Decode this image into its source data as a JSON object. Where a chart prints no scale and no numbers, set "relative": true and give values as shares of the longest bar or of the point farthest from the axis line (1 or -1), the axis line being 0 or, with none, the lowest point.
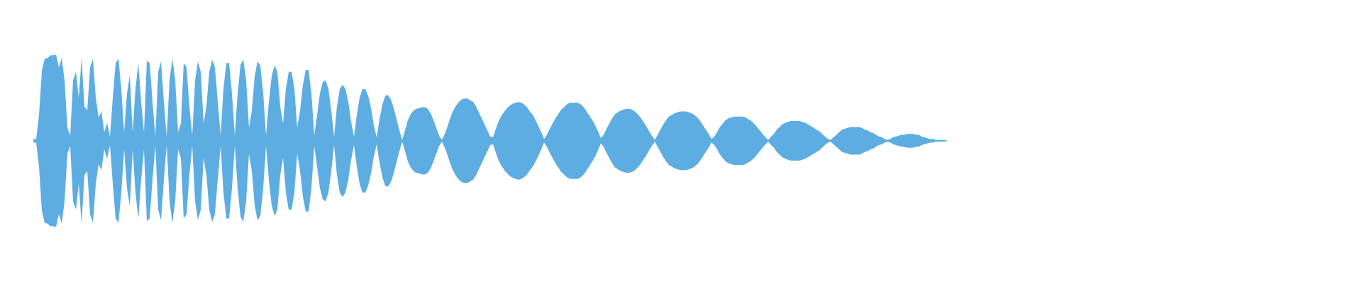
{
  "chart_data": {
    "type": "area",
    "relative": true,
    "tick_labels": false,
    "categories": [
      null,
      null,
      null,
      null,
      null,
      null,
      null,
      null,
      null,
      null,
      null,
      null,
      null,
      null,
      null,
      null,
      null,
      null,
      null,
      null,
      null,
      null,
      null,
      null,
      null,
      null,
      null,
      null,
      null,
      null,
      null,
      null,
      null,
      null,
      null,
      null,
      null,
      null,
      null,
      null,
      null,
      null,
      null,
      null,
      null,
      null,
      null,
      null,
      null,
      null,
      null,
      null,
      null,
      null,
      null,
      null,
      null,
      null,
      null,
      null,
      null,
      null,
      null,
      null,
      null,
      null,
      null,
      null,
      null,
      null,
      null,
      null,
      null,
      null,
      null,
      null,
      null,
      null,
      null,
      null,
      null,
      null,
      null,
      null,
      null,
      null,
      null,
      null,
      null,
      null,
      null,
      null,
      null,
      null,
      null,
      null,
      null,
      null,
      null,
      null,
      null,
      null,
      null,
      null,
      null,
      null,
      null,
      null,
      null,
      null,
      null,
      null,
      null,
      null,
      null,
      null,
      null,
      null,
      null,
      null,
      null,
      null,
      null,
      null,
      null,
      null,
      null,
      null,
      null,
      null,
      null,
      null,
      null,
      null,
      null,
      null,
      null,
      null,
      null,
      null,
      null,
      null,
      null,
      null,
      null,
      null,
      null,
      null,
      null,
      null,
      null,
      null,
      null,
      null,
      null,
      null,
      null,
      null,
      null,
      null,
      null,
      null,
      null,
      null,
      null,
      null,
      null,
      null,
      null,
      null,
      null,
      null,
      null,
      null,
      null,
      null,
      null,
      null,
      null,
      null,
      null,
      null,
      null,
      null,
      null,
      null,
      null,
      null,
      null,
      null,
      null,
      null,
      null,
      null,
      null,
      null,
      null,
      null,
      null,
      null,
      null,
      null,
      null,
      null,
      null,
      null,
      null,
      null,
      null,
      null,
      null,
      null,
      null,
      null,
      null,
      null,
      null,
      null,
      null,
      null,
      null,
      null,
      null,
      null,
      null,
      null,
      null,
      null,
      null,
      null,
      null,
      null,
      null,
      null,
      null,
      null,
      null,
      null,
      null,
      null,
      null,
      null,
      null,
      null,
      null,
      null,
      null,
      null,
      null,
      null,
      null,
      null,
      null,
      null,
      null,
      null,
      null,
      null,
      null,
      null,
      null,
      null,
      null,
      null,
      null,
      null,
      null,
      null,
      null,
      null,
      null,
      null,
      null,
      null,
      null,
      null,
      null,
      null,
      null,
      null,
      null,
      null,
      null,
      null,
      null,
      null,
      null,
      null,
      null,
      null,
      null,
      null,
      null,
      null,
      null,
      null,
      null,
      null,
      null,
      null,
      null,
      null,
      null,
      null,
      null,
      null,
      null,
      null,
      null,
      null,
      null,
      null,
      null,
      null,
      null,
      null,
      null,
      null,
      null,
      null,
      null,
      null,
      null
    ],
    "series": [
      {
        "color": "#5dade2",
        "values": [
          0.02,
          0.02,
          0.3,
          0.81,
          0.95,
          0.96,
          0.99,
          0.99,
          1,
          0.85,
          0.96,
          0.7,
          0.15,
          0.06,
          0.7,
          0.8,
          0.5,
          0.96,
          0.4,
          0.35,
          0.85,
          0.95,
          0.5,
          0.27,
          0.34,
          0.1,
          0.21,
          0.05,
          0.5,
          0.9,
          0.95,
          0.6,
          0.1,
          0.55,
          0.76,
          0.1,
          0.6,
          0.9,
          0.45,
          0.1,
          0.93,
          0.9,
          0.45,
          0.05,
          0.8,
          0.92,
          0.45,
          0.05,
          0.7,
          0.95,
          0.7,
          0.1,
          0.2,
          0.9,
          0.85,
          0.4,
          0.06,
          0.7,
          0.92,
          0.8,
          0.2,
          0.4,
          0.8,
          0.94,
          0.85,
          0.45,
          0.06,
          0.6,
          0.9,
          0.9,
          0.55,
          0.06,
          0.55,
          0.88,
          0.94,
          0.7,
          0.15,
          0.35,
          0.75,
          0.92,
          0.87,
          0.55,
          0.06,
          0.45,
          0.75,
          0.87,
          0.8,
          0.4,
          0.2,
          0.6,
          0.8,
          0.8,
          0.6,
          0.15,
          0.35,
          0.65,
          0.82,
          0.82,
          0.55,
          0.06,
          0.3,
          0.55,
          0.68,
          0.7,
          0.6,
          0.35,
          0.05,
          0.4,
          0.6,
          0.65,
          0.6,
          0.45,
          0.22,
          0.05,
          0.3,
          0.5,
          0.6,
          0.6,
          0.52,
          0.38,
          0.18,
          0.04,
          0.25,
          0.42,
          0.52,
          0.53,
          0.48,
          0.38,
          0.25,
          0.12,
          0.01,
          0.12,
          0.24,
          0.31,
          0.35,
          0.37,
          0.38,
          0.39,
          0.39,
          0.37,
          0.32,
          0.24,
          0.15,
          0.06,
          0.01,
          0.08,
          0.17,
          0.27,
          0.35,
          0.41,
          0.45,
          0.48,
          0.49,
          0.49,
          0.47,
          0.45,
          0.4,
          0.33,
          0.26,
          0.19,
          0.12,
          0.05,
          0.04,
          0.14,
          0.23,
          0.29,
          0.34,
          0.38,
          0.41,
          0.43,
          0.44,
          0.45,
          0.44,
          0.42,
          0.39,
          0.34,
          0.3,
          0.24,
          0.17,
          0.1,
          0.02,
          0.07,
          0.14,
          0.2,
          0.26,
          0.31,
          0.36,
          0.39,
          0.42,
          0.44,
          0.44,
          0.44,
          0.44,
          0.42,
          0.39,
          0.34,
          0.29,
          0.24,
          0.18,
          0.11,
          0.03,
          0.07,
          0.14,
          0.2,
          0.26,
          0.31,
          0.33,
          0.35,
          0.36,
          0.37,
          0.37,
          0.36,
          0.34,
          0.31,
          0.27,
          0.22,
          0.17,
          0.11,
          0.06,
          0.01,
          0.07,
          0.13,
          0.19,
          0.24,
          0.28,
          0.3,
          0.32,
          0.33,
          0.34,
          0.34,
          0.34,
          0.33,
          0.32,
          0.3,
          0.27,
          0.23,
          0.18,
          0.13,
          0.08,
          0.02,
          0.05,
          0.1,
          0.16,
          0.2,
          0.24,
          0.26,
          0.27,
          0.28,
          0.28,
          0.28,
          0.28,
          0.27,
          0.25,
          0.23,
          0.2,
          0.16,
          0.12,
          0.08,
          0.04,
          0.01,
          0.05,
          0.08,
          0.13,
          0.16,
          0.19,
          0.21,
          0.22,
          0.23,
          0.23,
          0.23,
          0.23,
          0.22,
          0.21,
          0.19,
          0.17,
          0.15,
          0.13,
          0.11,
          0.08,
          0.05,
          0.02,
          0.01,
          0.04,
          0.07,
          0.1,
          0.13,
          0.14,
          0.15,
          0.16,
          0.16,
          0.16,
          0.16,
          0.15,
          0.13,
          0.12,
          0.1,
          0.09,
          0.07,
          0.05,
          0.04,
          0.02,
          0.01,
          0.02,
          0.04,
          0.05,
          0.06,
          0.07,
          0.07,
          0.08,
          0.08,
          0.08,
          0.07,
          0.07,
          0.05,
          0.04,
          0.03,
          0.02,
          0.02,
          0.01,
          0.01,
          0.01,
          0.01,
          0
        ]
      },
      {
        "color": "#5dade2",
        "values": [
          -0.02,
          -0.02,
          -0.3,
          -0.81,
          -0.95,
          -0.96,
          -0.99,
          -0.99,
          -1,
          -0.85,
          -0.96,
          -0.7,
          -0.15,
          -0.06,
          -0.7,
          -0.8,
          -0.5,
          -0.96,
          -0.4,
          -0.35,
          -0.85,
          -0.95,
          -0.5,
          -0.27,
          -0.34,
          -0.1,
          -0.21,
          -0.05,
          -0.5,
          -0.9,
          -0.95,
          -0.6,
          -0.1,
          -0.55,
          -0.76,
          -0.1,
          -0.6,
          -0.9,
          -0.45,
          -0.1,
          -0.93,
          -0.9,
          -0.45,
          -0.05,
          -0.8,
          -0.92,
          -0.45,
          -0.05,
          -0.7,
          -0.95,
          -0.7,
          -0.1,
          -0.2,
          -0.9,
          -0.85,
          -0.4,
          -0.06,
          -0.7,
          -0.92,
          -0.8,
          -0.2,
          -0.4,
          -0.8,
          -0.94,
          -0.85,
          -0.45,
          -0.06,
          -0.6,
          -0.9,
          -0.9,
          -0.55,
          -0.06,
          -0.55,
          -0.88,
          -0.94,
          -0.7,
          -0.15,
          -0.35,
          -0.75,
          -0.92,
          -0.87,
          -0.55,
          -0.06,
          -0.45,
          -0.75,
          -0.87,
          -0.8,
          -0.4,
          -0.2,
          -0.6,
          -0.8,
          -0.8,
          -0.6,
          -0.15,
          -0.35,
          -0.65,
          -0.82,
          -0.82,
          -0.55,
          -0.06,
          -0.3,
          -0.55,
          -0.68,
          -0.7,
          -0.6,
          -0.35,
          -0.05,
          -0.4,
          -0.6,
          -0.65,
          -0.6,
          -0.45,
          -0.22,
          -0.05,
          -0.3,
          -0.5,
          -0.6,
          -0.6,
          -0.52,
          -0.38,
          -0.18,
          -0.04,
          -0.25,
          -0.42,
          -0.52,
          -0.53,
          -0.48,
          -0.38,
          -0.25,
          -0.12,
          -0.01,
          -0.12,
          -0.24,
          -0.31,
          -0.35,
          -0.37,
          -0.38,
          -0.39,
          -0.39,
          -0.37,
          -0.32,
          -0.24,
          -0.15,
          -0.06,
          -0.01,
          -0.08,
          -0.17,
          -0.27,
          -0.35,
          -0.41,
          -0.45,
          -0.48,
          -0.49,
          -0.49,
          -0.47,
          -0.45,
          -0.4,
          -0.33,
          -0.26,
          -0.19,
          -0.12,
          -0.05,
          -0.04,
          -0.14,
          -0.23,
          -0.29,
          -0.34,
          -0.38,
          -0.41,
          -0.43,
          -0.44,
          -0.45,
          -0.44,
          -0.42,
          -0.39,
          -0.34,
          -0.3,
          -0.24,
          -0.17,
          -0.1,
          -0.02,
          -0.07,
          -0.14,
          -0.2,
          -0.26,
          -0.31,
          -0.36,
          -0.39,
          -0.42,
          -0.44,
          -0.44,
          -0.44,
          -0.44,
          -0.42,
          -0.39,
          -0.34,
          -0.29,
          -0.24,
          -0.18,
          -0.11,
          -0.03,
          -0.07,
          -0.14,
          -0.2,
          -0.26,
          -0.31,
          -0.33,
          -0.35,
          -0.36,
          -0.37,
          -0.37,
          -0.36,
          -0.34,
          -0.31,
          -0.27,
          -0.22,
          -0.17,
          -0.11,
          -0.06,
          -0.01,
          -0.07,
          -0.13,
          -0.19,
          -0.24,
          -0.28,
          -0.3,
          -0.32,
          -0.33,
          -0.34,
          -0.34,
          -0.34,
          -0.33,
          -0.32,
          -0.3,
          -0.27,
          -0.23,
          -0.18,
          -0.13,
          -0.08,
          -0.02,
          -0.05,
          -0.1,
          -0.16,
          -0.2,
          -0.24,
          -0.26,
          -0.27,
          -0.28,
          -0.28,
          -0.28,
          -0.28,
          -0.27,
          -0.25,
          -0.23,
          -0.2,
          -0.16,
          -0.12,
          -0.08,
          -0.04,
          -0.01,
          -0.05,
          -0.08,
          -0.13,
          -0.16,
          -0.19,
          -0.21,
          -0.22,
          -0.23,
          -0.23,
          -0.23,
          -0.23,
          -0.22,
          -0.21,
          -0.19,
          -0.17,
          -0.15,
          -0.13,
          -0.11,
          -0.08,
          -0.05,
          -0.02,
          -0.01,
          -0.04,
          -0.07,
          -0.1,
          -0.13,
          -0.14,
          -0.15,
          -0.16,
          -0.16,
          -0.16,
          -0.16,
          -0.15,
          -0.13,
          -0.12,
          -0.1,
          -0.09,
          -0.07,
          -0.05,
          -0.04,
          -0.02,
          -0.01,
          -0.02,
          -0.04,
          -0.05,
          -0.06,
          -0.07,
          -0.07,
          -0.08,
          -0.08,
          -0.08,
          -0.07,
          -0.07,
          -0.05,
          -0.04,
          -0.03,
          -0.02,
          -0.02,
          -0.01,
          -0.01,
          -0.01,
          -0.01,
          0
        ]
      }
    ]
  }
}
